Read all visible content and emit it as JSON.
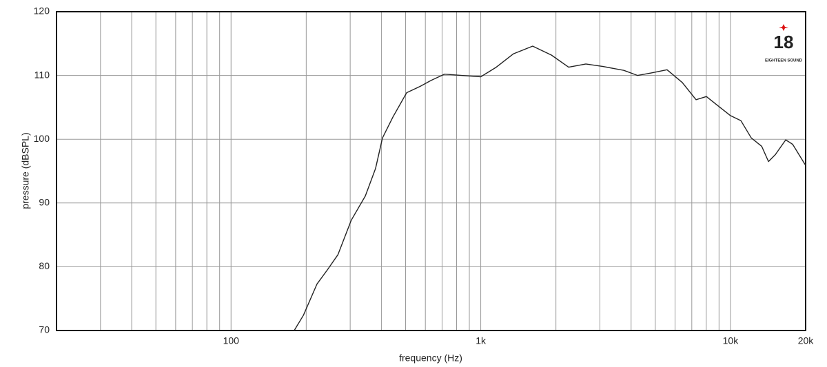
{
  "chart_data": {
    "type": "line",
    "xlabel": "frequency (Hz)",
    "ylabel": "pressure (dBSPL)",
    "xscale": "log",
    "xlim": [
      20,
      20000
    ],
    "xticks": [
      100,
      {
        "value": 1000,
        "label": "1k"
      },
      {
        "value": 10000,
        "label": "10k"
      },
      {
        "value": 20000,
        "label": "20k"
      }
    ],
    "minor_xticks": [
      30,
      40,
      50,
      60,
      70,
      80,
      90,
      200,
      300,
      400,
      500,
      600,
      700,
      800,
      900,
      2000,
      3000,
      4000,
      5000,
      6000,
      7000,
      8000,
      9000
    ],
    "ylim": [
      70,
      120
    ],
    "yticks": [
      70,
      80,
      90,
      100,
      110,
      120
    ],
    "grid": true,
    "series": [
      {
        "color": "#222222",
        "x": [
          179,
          195,
          221,
          243,
          268,
          303,
          345,
          379,
          404,
          445,
          505,
          573,
          631,
          716,
          839,
          1000,
          1154,
          1352,
          1614,
          1918,
          2248,
          2636,
          3090,
          3740,
          4249,
          4822,
          5572,
          6412,
          7280,
          8012,
          8810,
          10000,
          11010,
          12110,
          13330,
          14200,
          15140,
          16640,
          17750,
          20000
        ],
        "values": [
          70,
          72.4,
          77.3,
          79.5,
          81.9,
          87.3,
          91.1,
          95.4,
          100.2,
          103.5,
          107.3,
          108.3,
          109.2,
          110.2,
          110.0,
          109.8,
          111.3,
          113.4,
          114.6,
          113.2,
          111.3,
          111.8,
          111.4,
          110.8,
          110.0,
          110.4,
          110.9,
          108.9,
          106.2,
          106.7,
          105.4,
          103.7,
          102.9,
          100.2,
          98.9,
          96.5,
          97.6,
          99.9,
          99.2,
          95.9
        ]
      }
    ]
  },
  "logo": {
    "number": "18",
    "text": "EIGHTEEN SOUND"
  }
}
